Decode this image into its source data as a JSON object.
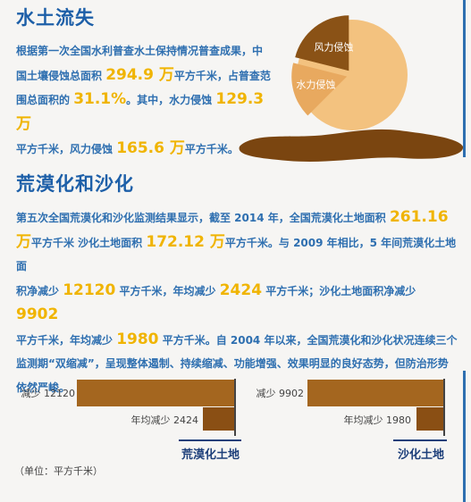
{
  "section1": {
    "title": "水土流失",
    "line1": "根据第一次全国水利普查水土保持情况普查成果，中",
    "line2_a": "国土壤侵蚀总面积 ",
    "line2_num": "294.9 万",
    "line2_b": "平方千米，占普查范",
    "line3_a": "围总面积的 ",
    "line3_num1": "31.1%",
    "line3_b": "。其中，水力侵蚀 ",
    "line3_num2": "129.3 万",
    "line4_a": "平方千米，风力侵蚀 ",
    "line4_num": "165.6 万",
    "line4_b": "平方千米。"
  },
  "pie": {
    "labels": [
      "风力侵蚀",
      "水力侵蚀"
    ],
    "values": [
      165.6,
      129.3
    ],
    "colors": {
      "wind": "#8a5216",
      "water": "#e8a95f",
      "rest": "#f3c27f"
    }
  },
  "section2": {
    "title": "荒漠化和沙化",
    "line1_a": "第五次全国荒漠化和沙化监测结果显示，截至 2014 年，全国荒漠化土地面积 ",
    "line1_num": "261.16",
    "line2_num1": "万",
    "line2_a": "平方千米 沙化土地面积 ",
    "line2_num2": "172.12 万",
    "line2_b": "平方千米。与 2009 年相比，5 年间荒漠化土地面",
    "line3_a": "积净减少 ",
    "line3_num1": "12120",
    "line3_b": " 平方千米，年均减少 ",
    "line3_num2": "2424",
    "line3_c": " 平方千米；沙化土地面积净减少 ",
    "line3_num3": "9902",
    "line4_a": "平方千米，年均减少 ",
    "line4_num": "1980",
    "line4_b": " 平方千米。自 2004 年以来，全国荒漠化和沙化状况连续三个",
    "line5": "监测期“双缩减”，呈现整体遏制、持续缩减、功能增强、效果明显的良好态势，但防治形势",
    "line6": "依然严峻。"
  },
  "chart_data": [
    {
      "type": "bar",
      "categories": [
        "减少 12120",
        "年均减少 2424"
      ],
      "values": [
        12120,
        2424
      ],
      "xlabel": "荒漠化土地",
      "colors": [
        "#a4661f",
        "#8a4f14"
      ]
    },
    {
      "type": "bar",
      "categories": [
        "减少 9902",
        "年均减少 1980"
      ],
      "values": [
        9902,
        1980
      ],
      "xlabel": "沙化土地",
      "colors": [
        "#a4661f",
        "#8a4f14"
      ]
    }
  ],
  "unit_note": "（单位：平方千米）"
}
